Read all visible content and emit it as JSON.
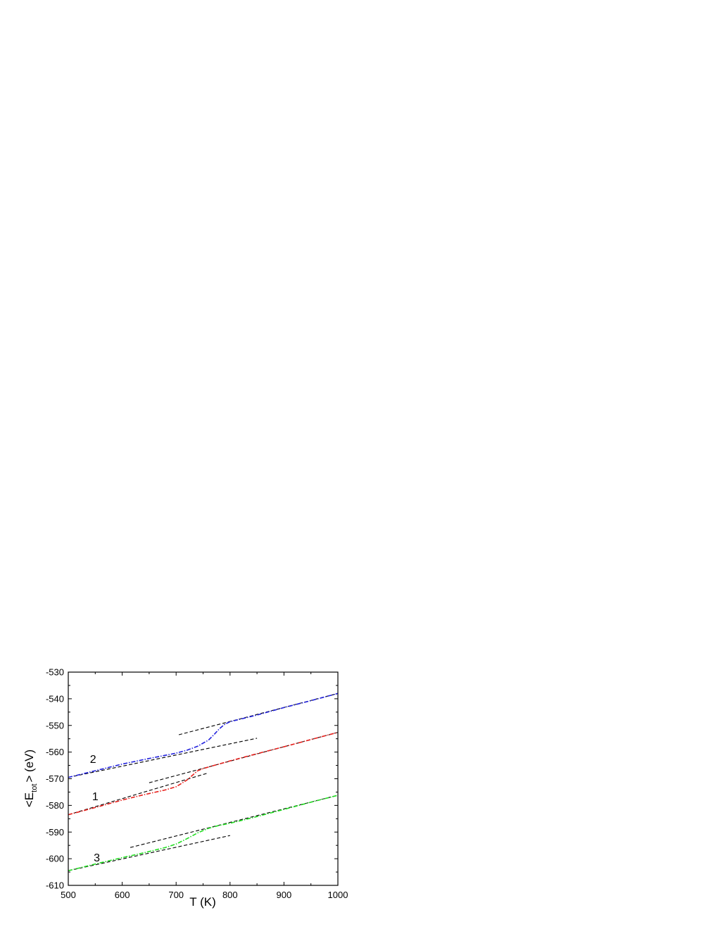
{
  "chart_data": {
    "type": "line",
    "title": "",
    "xlabel": "T (K)",
    "ylabel": {
      "prefix": "<E",
      "subscript": "tot",
      "suffix": "> (eV)"
    },
    "xlim": [
      500,
      1000
    ],
    "ylim": [
      -610,
      -530
    ],
    "xticks": [
      500,
      600,
      700,
      800,
      900,
      1000
    ],
    "yticks": [
      -530,
      -540,
      -550,
      -560,
      -570,
      -580,
      -590,
      -600,
      -610
    ],
    "x_minor_step": 50,
    "y_minor_step": 5,
    "grid": false,
    "series": [
      {
        "name": "1",
        "color": "#e8201c",
        "style": "dash-dot",
        "label_at": [
          550,
          -578
        ],
        "x": [
          500,
          550,
          600,
          640,
          680,
          700,
          720,
          740,
          750,
          760,
          800,
          850,
          900,
          950,
          1000
        ],
        "y": [
          -583.5,
          -580.8,
          -578.0,
          -576.0,
          -574.2,
          -573.0,
          -570.5,
          -567.0,
          -566.2,
          -565.6,
          -563.3,
          -560.6,
          -558.0,
          -555.3,
          -552.6
        ]
      },
      {
        "name": "2",
        "color": "#2222dd",
        "style": "dash-dot",
        "label_at": [
          546,
          -564
        ],
        "x": [
          500,
          550,
          600,
          650,
          700,
          720,
          740,
          760,
          770,
          780,
          790,
          800,
          850,
          900,
          950,
          1000
        ],
        "y": [
          -569.5,
          -567.0,
          -564.5,
          -562.4,
          -560.4,
          -559.3,
          -557.8,
          -555.5,
          -553.5,
          -551.3,
          -549.6,
          -548.6,
          -546.1,
          -543.3,
          -540.7,
          -538.0
        ]
      },
      {
        "name": "3",
        "color": "#22dd22",
        "style": "dash-dot",
        "label_at": [
          553,
          -601
        ],
        "x": [
          500,
          550,
          600,
          640,
          680,
          700,
          720,
          740,
          760,
          780,
          800,
          850,
          900,
          950,
          1000
        ],
        "y": [
          -604.5,
          -602.0,
          -599.6,
          -597.8,
          -595.8,
          -594.5,
          -592.5,
          -590.3,
          -588.6,
          -587.5,
          -586.7,
          -584.2,
          -581.5,
          -578.8,
          -576.2
        ]
      }
    ],
    "reference_lines": [
      {
        "x": [
          500,
          760
        ],
        "y": [
          -583.5,
          -567.8
        ]
      },
      {
        "x": [
          650,
          1000
        ],
        "y": [
          -571.5,
          -552.6
        ]
      },
      {
        "x": [
          500,
          850
        ],
        "y": [
          -569.5,
          -554.8
        ]
      },
      {
        "x": [
          705,
          1000
        ],
        "y": [
          -553.5,
          -538.0
        ]
      },
      {
        "x": [
          500,
          800
        ],
        "y": [
          -604.5,
          -591.3
        ]
      },
      {
        "x": [
          615,
          1000
        ],
        "y": [
          -595.8,
          -576.2
        ]
      }
    ]
  }
}
